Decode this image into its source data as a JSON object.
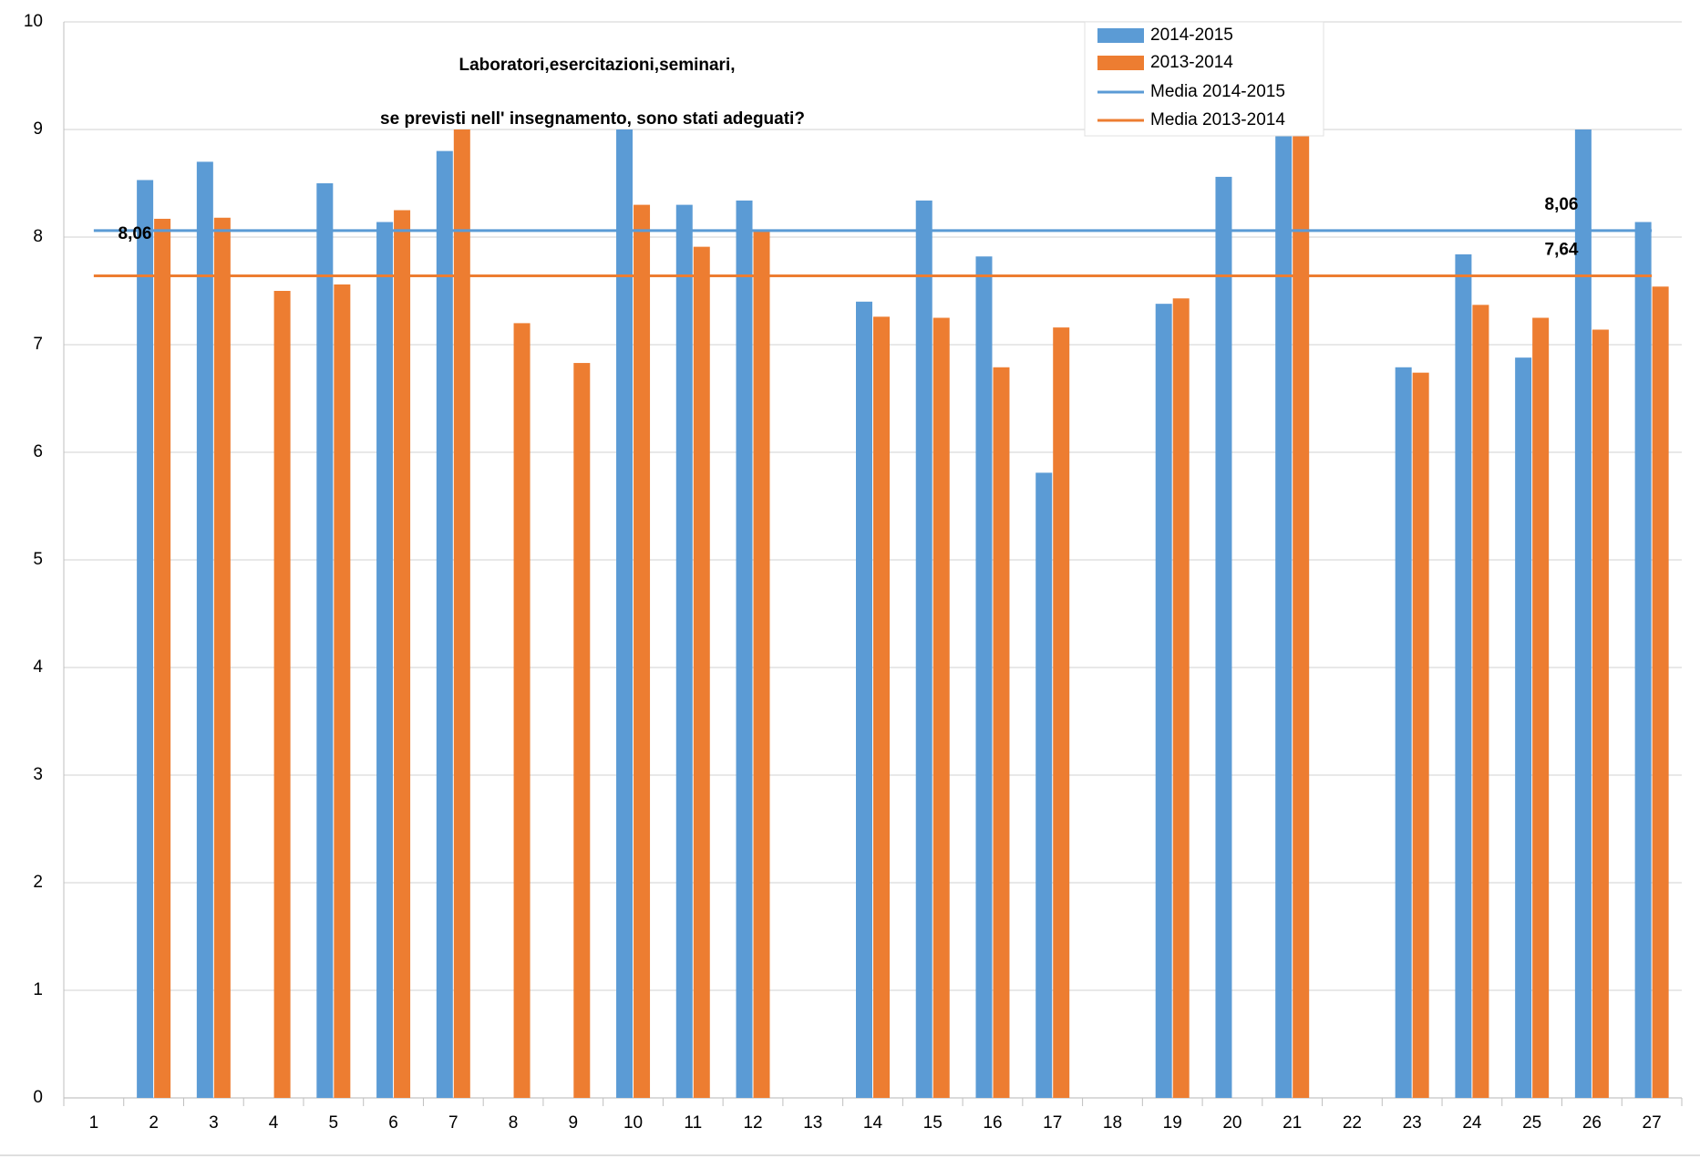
{
  "chart_data": {
    "type": "bar",
    "title": [
      "Laboratori,esercitazioni,seminari,",
      "se previsti nell' insegnamento, sono stati adeguati?"
    ],
    "categories": [
      1,
      2,
      3,
      4,
      5,
      6,
      7,
      8,
      9,
      10,
      11,
      12,
      13,
      14,
      15,
      16,
      17,
      18,
      19,
      20,
      21,
      22,
      23,
      24,
      25,
      26,
      27
    ],
    "series": [
      {
        "name": "2014-2015",
        "color": "#5b9bd5",
        "values": [
          null,
          8.53,
          8.7,
          null,
          8.5,
          8.14,
          8.8,
          null,
          null,
          9.0,
          8.3,
          8.34,
          null,
          7.4,
          8.34,
          7.82,
          5.81,
          null,
          7.38,
          8.56,
          8.94,
          null,
          6.79,
          7.84,
          6.88,
          9.0,
          8.14
        ]
      },
      {
        "name": "2013-2014",
        "color": "#ed7d31",
        "values": [
          null,
          8.17,
          8.18,
          7.5,
          7.56,
          8.25,
          9.0,
          7.2,
          6.83,
          8.3,
          7.91,
          8.06,
          null,
          7.26,
          7.25,
          6.79,
          7.16,
          null,
          7.43,
          null,
          8.94,
          null,
          6.74,
          7.37,
          7.25,
          7.14,
          7.54
        ]
      }
    ],
    "mean_lines": [
      {
        "name": "Media 2014-2015",
        "color": "#5b9bd5",
        "label_color": "#4bc8d0",
        "value": 8.06,
        "value_label": "8,06"
      },
      {
        "name": "Media 2013-2014",
        "color": "#ed7d31",
        "label_color": "#ed7d31",
        "value": 7.64,
        "value_label": "7,64"
      }
    ],
    "ylim": [
      0,
      10
    ],
    "yticks": [
      0,
      1,
      2,
      3,
      4,
      5,
      6,
      7,
      8,
      9,
      10
    ],
    "grid": true
  }
}
